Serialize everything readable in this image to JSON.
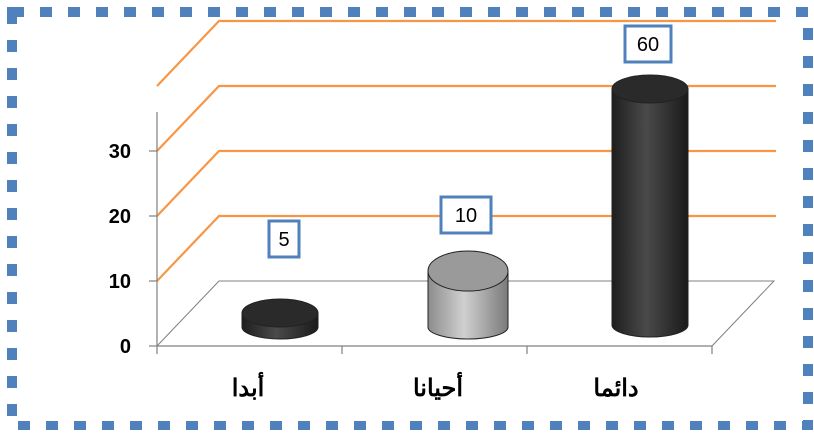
{
  "colors": {
    "frame_dash": "#4f81bd",
    "gridline": "#f79646",
    "axis": "#808080",
    "bar_dark": "#3a3a3a",
    "bar_gray": "#a6a6a6",
    "label_box": "#4f81bd"
  },
  "chart_data": {
    "type": "bar",
    "style": "3d-cylinder",
    "categories": [
      "أبدا",
      "أحيانا",
      "دائما"
    ],
    "values": [
      5,
      10,
      60
    ],
    "data_labels": [
      "5",
      "10",
      "60"
    ],
    "bar_colors": [
      "#3a3a3a",
      "#a6a6a6",
      "#3a3a3a"
    ],
    "y_ticks": [
      "0",
      "10",
      "20",
      "30"
    ],
    "ylim": [
      0,
      40
    ],
    "grid": true,
    "title": "",
    "xlabel": "",
    "ylabel": ""
  }
}
